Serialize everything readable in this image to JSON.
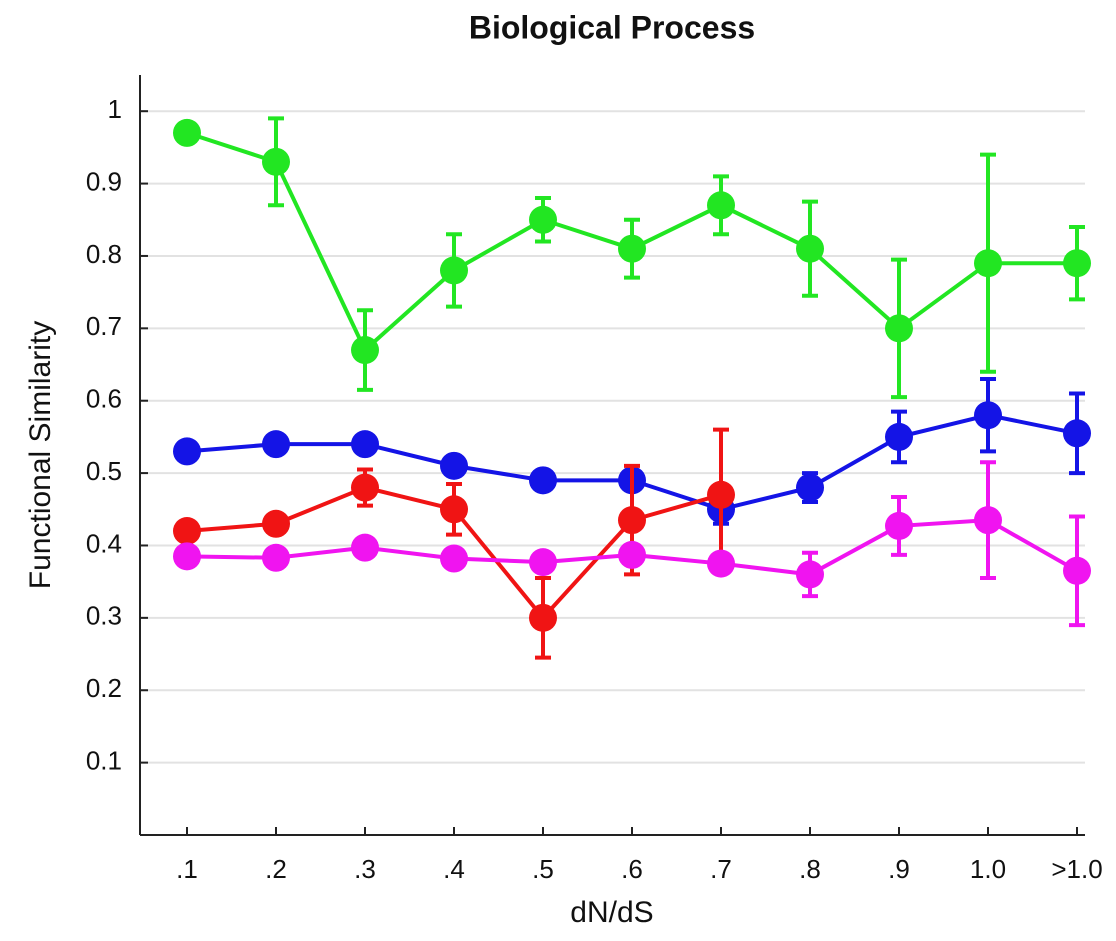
{
  "chart_data": {
    "type": "line",
    "title": "Biological Process",
    "xlabel": "dN/dS",
    "ylabel": "Functional Similarity",
    "categories": [
      ".1",
      ".2",
      ".3",
      ".4",
      ".5",
      ".6",
      ".7",
      ".8",
      ".9",
      "1.0",
      ">1.0"
    ],
    "ylim": [
      0,
      1.05
    ],
    "yticks": [
      0.1,
      0.2,
      0.3,
      0.4,
      0.5,
      0.6,
      0.7,
      0.8,
      0.9,
      1
    ],
    "grid": true,
    "series": [
      {
        "color": "#22e622",
        "values": [
          0.97,
          0.93,
          0.67,
          0.78,
          0.85,
          0.81,
          0.87,
          0.81,
          0.7,
          0.79,
          0.79
        ],
        "errors": [
          0.01,
          0.06,
          0.055,
          0.05,
          0.03,
          0.04,
          0.04,
          0.065,
          0.095,
          0.15,
          0.05
        ]
      },
      {
        "color": "#1414e6",
        "values": [
          0.53,
          0.54,
          0.54,
          0.51,
          0.49,
          0.49,
          0.45,
          0.48,
          0.55,
          0.58,
          0.555
        ],
        "errors": [
          0.005,
          0.005,
          0.005,
          0.005,
          0.005,
          0.005,
          0.02,
          0.02,
          0.035,
          0.05,
          0.055
        ]
      },
      {
        "color": "#f01414",
        "values": [
          0.42,
          0.43,
          0.48,
          0.45,
          0.3,
          0.435,
          0.47,
          null,
          null,
          null,
          null
        ],
        "errors": [
          0.005,
          0.005,
          0.025,
          0.035,
          0.055,
          0.075,
          0.09,
          null,
          null,
          null,
          null
        ]
      },
      {
        "color": "#f014f0",
        "values": [
          0.385,
          0.383,
          0.397,
          0.382,
          0.377,
          0.387,
          0.375,
          0.36,
          0.427,
          0.435,
          0.365
        ],
        "errors": [
          0.005,
          0.005,
          0.005,
          0.005,
          0.005,
          0.005,
          0.005,
          0.03,
          0.04,
          0.08,
          0.075
        ]
      }
    ]
  }
}
